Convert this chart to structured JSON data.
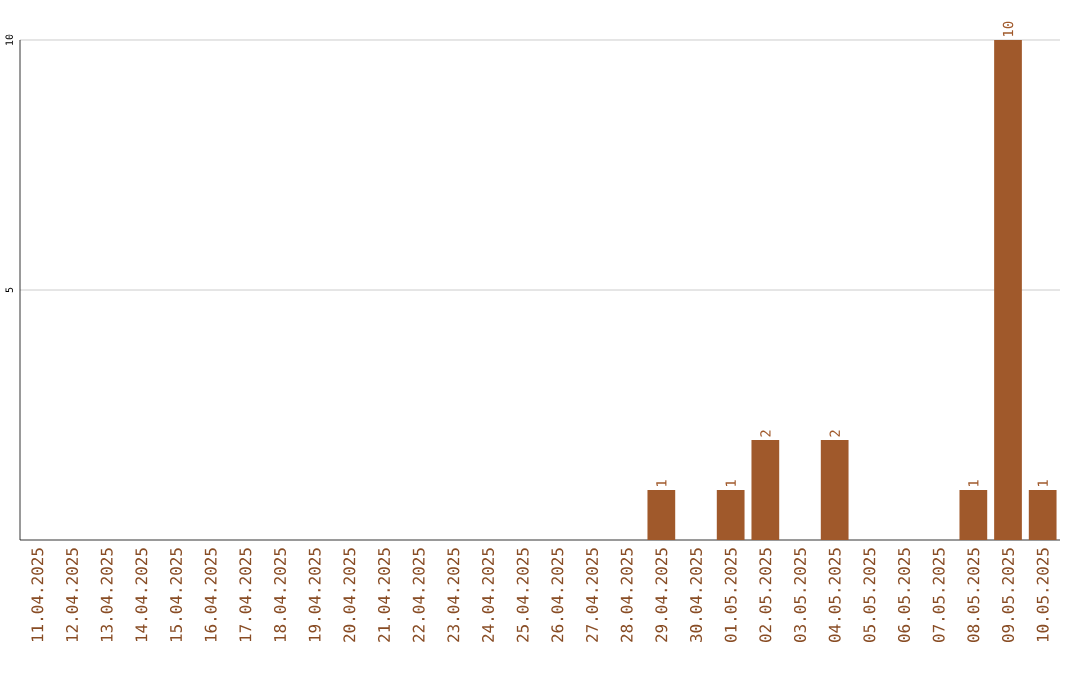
{
  "chart_data": {
    "type": "bar",
    "categories": [
      "11.04.2025",
      "12.04.2025",
      "13.04.2025",
      "14.04.2025",
      "15.04.2025",
      "16.04.2025",
      "17.04.2025",
      "18.04.2025",
      "19.04.2025",
      "20.04.2025",
      "21.04.2025",
      "22.04.2025",
      "23.04.2025",
      "24.04.2025",
      "25.04.2025",
      "26.04.2025",
      "27.04.2025",
      "28.04.2025",
      "29.04.2025",
      "30.04.2025",
      "01.05.2025",
      "02.05.2025",
      "03.05.2025",
      "04.05.2025",
      "05.05.2025",
      "06.05.2025",
      "07.05.2025",
      "08.05.2025",
      "09.05.2025",
      "10.05.2025"
    ],
    "values": [
      0,
      0,
      0,
      0,
      0,
      0,
      0,
      0,
      0,
      0,
      0,
      0,
      0,
      0,
      0,
      0,
      0,
      0,
      1,
      0,
      1,
      2,
      0,
      2,
      0,
      0,
      0,
      1,
      10,
      1
    ],
    "value_labels": [
      null,
      null,
      null,
      null,
      null,
      null,
      null,
      null,
      null,
      null,
      null,
      null,
      null,
      null,
      null,
      null,
      null,
      null,
      "1",
      null,
      "1",
      "2",
      null,
      "2",
      null,
      null,
      null,
      "1",
      "10",
      "1"
    ],
    "color": "#a0592b",
    "ylim": [
      0,
      10
    ],
    "yticks": [
      5,
      10
    ],
    "grid": "y"
  }
}
